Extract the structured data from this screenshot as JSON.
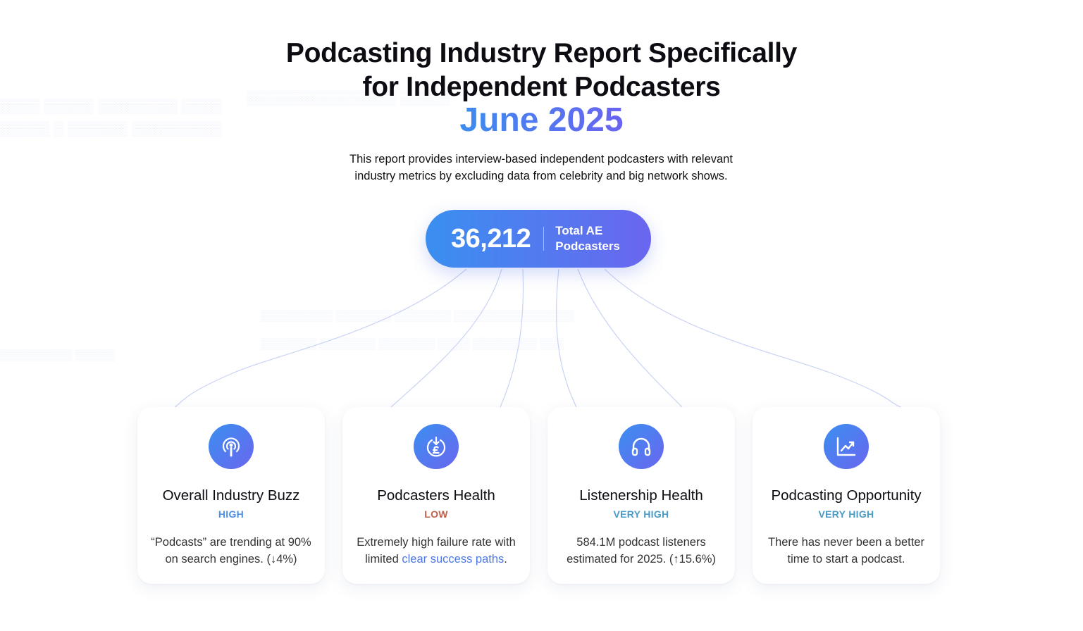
{
  "header": {
    "title_line1": "Podcasting Industry Report Specifically",
    "title_line2": "for Independent Podcasters",
    "date": "June 2025",
    "description": "This report provides interview-based independent podcasters with relevant industry metrics by excluding data from celebrity and big network shows."
  },
  "summary": {
    "total": "36,212",
    "total_label": "Total AE Podcasters"
  },
  "colors": {
    "accent_start": "#3a8ff0",
    "accent_end": "#6a66ef",
    "level_high": "#4c8ee8",
    "level_low": "#c0604a",
    "level_very_high": "#4a9ac8"
  },
  "cards": [
    {
      "icon": "podcast-icon",
      "title": "Overall Industry Buzz",
      "level": "HIGH",
      "desc": "“Podcasts” are trending at 90% on search engines. (↓4%)"
    },
    {
      "icon": "money-down-icon",
      "title": "Podcasters Health",
      "level": "LOW",
      "desc_prefix": "Extremely high failure rate with limited ",
      "desc_link": "clear success paths",
      "desc_suffix": "."
    },
    {
      "icon": "headphones-icon",
      "title": "Listenership Health",
      "level": "VERY HIGH",
      "desc": "584.1M podcast listeners estimated for 2025. (↑15.6%)"
    },
    {
      "icon": "trend-chart-icon",
      "title": "Podcasting Opportunity",
      "level": "VERY HIGH",
      "desc": "There has never been a better time to start a podcast."
    }
  ]
}
